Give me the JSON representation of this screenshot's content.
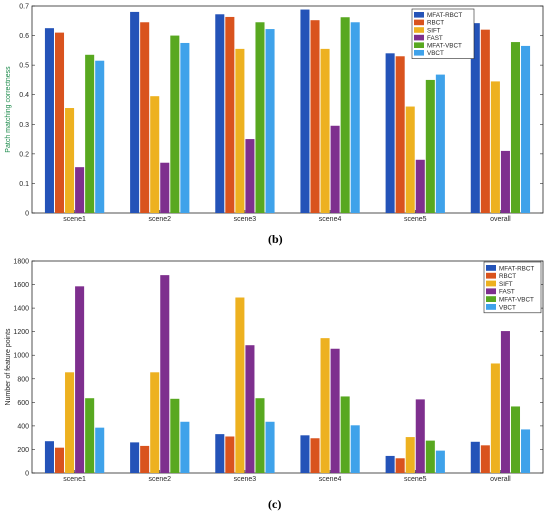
{
  "colors": {
    "MFAT-RBCT": "#2453b8",
    "RBCT": "#d9531e",
    "SIFT": "#edb120",
    "FAST": "#7e2f8e",
    "MFAT-VBCT": "#58a820",
    "VBCT": "#3fa2ea"
  },
  "chart_data": [
    {
      "type": "bar",
      "caption": "(b)",
      "ylabel": "Patch matching correctness",
      "xlabel": "",
      "ylim": [
        0,
        0.7
      ],
      "yticks": [
        "0",
        "0.1",
        "0.2",
        "0.3",
        "0.4",
        "0.5",
        "0.6",
        "0.7"
      ],
      "grid": false,
      "legend_position": "top-right",
      "categories": [
        "scene1",
        "scene2",
        "scene3",
        "scene4",
        "scene5",
        "overall"
      ],
      "series": [
        {
          "name": "MFAT-RBCT",
          "values": [
            0.625,
            0.68,
            0.672,
            0.688,
            0.54,
            0.642
          ]
        },
        {
          "name": "RBCT",
          "values": [
            0.61,
            0.645,
            0.663,
            0.652,
            0.53,
            0.62
          ]
        },
        {
          "name": "SIFT",
          "values": [
            0.355,
            0.395,
            0.555,
            0.555,
            0.36,
            0.445
          ]
        },
        {
          "name": "FAST",
          "values": [
            0.155,
            0.17,
            0.25,
            0.295,
            0.18,
            0.21
          ]
        },
        {
          "name": "MFAT-VBCT",
          "values": [
            0.535,
            0.6,
            0.645,
            0.662,
            0.45,
            0.578
          ]
        },
        {
          "name": "VBCT",
          "values": [
            0.515,
            0.575,
            0.622,
            0.645,
            0.468,
            0.565
          ]
        }
      ]
    },
    {
      "type": "bar",
      "caption": "(c)",
      "ylabel": "Number of feature points",
      "xlabel": "",
      "ylim": [
        0,
        1800
      ],
      "yticks": [
        "0",
        "200",
        "400",
        "600",
        "800",
        "1000",
        "1200",
        "1400",
        "1600",
        "1800"
      ],
      "grid": false,
      "legend_position": "top-right",
      "categories": [
        "scene1",
        "scene2",
        "scene3",
        "scene4",
        "scene5",
        "overall"
      ],
      "series": [
        {
          "name": "MFAT-RBCT",
          "values": [
            270,
            260,
            330,
            320,
            145,
            265
          ]
        },
        {
          "name": "RBCT",
          "values": [
            215,
            230,
            310,
            295,
            125,
            235
          ]
        },
        {
          "name": "SIFT",
          "values": [
            855,
            855,
            1490,
            1145,
            305,
            930
          ]
        },
        {
          "name": "FAST",
          "values": [
            1585,
            1680,
            1085,
            1055,
            625,
            1205
          ]
        },
        {
          "name": "MFAT-VBCT",
          "values": [
            635,
            630,
            635,
            650,
            275,
            565
          ]
        },
        {
          "name": "VBCT",
          "values": [
            385,
            435,
            435,
            405,
            190,
            370
          ]
        }
      ]
    }
  ]
}
